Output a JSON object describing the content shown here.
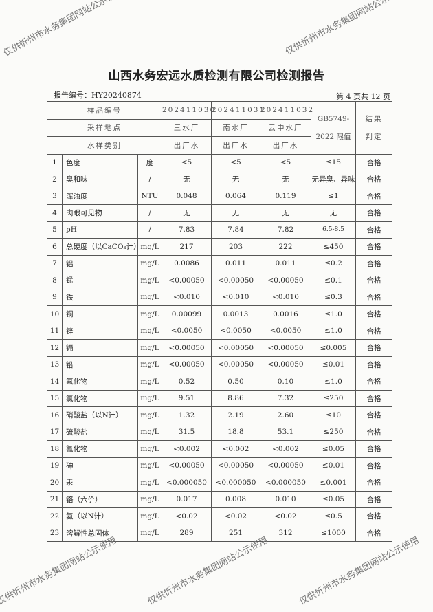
{
  "title": "山西水务宏远水质检测有限公司检测报告",
  "report_number": "报告编号：HY20240874",
  "page_info": "第 4 页共 12 页",
  "watermark": "仅供忻州市水务集团网站公示使用",
  "header": {
    "sample_id_label": "样品编号",
    "location_label": "采样地点",
    "type_label": "水样类别",
    "standard_line1": "GB5749-",
    "standard_line2": "2022 限值",
    "result_line1": "结果",
    "result_line2": "判定",
    "samples": [
      {
        "id": "202411030",
        "location": "三水厂",
        "type": "出厂水"
      },
      {
        "id": "202411031",
        "location": "南水厂",
        "type": "出厂水"
      },
      {
        "id": "202411032",
        "location": "云中水厂",
        "type": "出厂水"
      }
    ]
  },
  "rows": [
    {
      "no": "1",
      "name": "色度",
      "unit": "度",
      "v": [
        "<5",
        "<5",
        "<5"
      ],
      "limit": "≤15",
      "result": "合格"
    },
    {
      "no": "2",
      "name": "臭和味",
      "unit": "/",
      "v": [
        "无",
        "无",
        "无"
      ],
      "limit": "无异臭、异味",
      "result": "合格"
    },
    {
      "no": "3",
      "name": "浑浊度",
      "unit": "NTU",
      "v": [
        "0.048",
        "0.064",
        "0.119"
      ],
      "limit": "≤1",
      "result": "合格"
    },
    {
      "no": "4",
      "name": "肉眼可见物",
      "unit": "/",
      "v": [
        "无",
        "无",
        "无"
      ],
      "limit": "无",
      "result": "合格"
    },
    {
      "no": "5",
      "name": "pH",
      "unit": "/",
      "v": [
        "7.83",
        "7.84",
        "7.82"
      ],
      "limit": "6.5-8.5",
      "result": "合格"
    },
    {
      "no": "6",
      "name": "总硬度（以CaCO₃计）",
      "unit": "mg/L",
      "v": [
        "217",
        "203",
        "222"
      ],
      "limit": "≤450",
      "result": "合格"
    },
    {
      "no": "7",
      "name": "铝",
      "unit": "mg/L",
      "v": [
        "0.0086",
        "0.011",
        "0.011"
      ],
      "limit": "≤0.2",
      "result": "合格"
    },
    {
      "no": "8",
      "name": "锰",
      "unit": "mg/L",
      "v": [
        "<0.00050",
        "<0.00050",
        "<0.00050"
      ],
      "limit": "≤0.1",
      "result": "合格"
    },
    {
      "no": "9",
      "name": "铁",
      "unit": "mg/L",
      "v": [
        "<0.010",
        "<0.010",
        "<0.010"
      ],
      "limit": "≤0.3",
      "result": "合格"
    },
    {
      "no": "10",
      "name": "铜",
      "unit": "mg/L",
      "v": [
        "0.00099",
        "0.0013",
        "0.0016"
      ],
      "limit": "≤1.0",
      "result": "合格"
    },
    {
      "no": "11",
      "name": "锌",
      "unit": "mg/L",
      "v": [
        "<0.0050",
        "<0.0050",
        "<0.0050"
      ],
      "limit": "≤1.0",
      "result": "合格"
    },
    {
      "no": "12",
      "name": "镉",
      "unit": "mg/L",
      "v": [
        "<0.00050",
        "<0.00050",
        "<0.00050"
      ],
      "limit": "≤0.005",
      "result": "合格"
    },
    {
      "no": "13",
      "name": "铅",
      "unit": "mg/L",
      "v": [
        "<0.00050",
        "<0.00050",
        "<0.00050"
      ],
      "limit": "≤0.01",
      "result": "合格"
    },
    {
      "no": "14",
      "name": "氟化物",
      "unit": "mg/L",
      "v": [
        "0.52",
        "0.50",
        "0.10"
      ],
      "limit": "≤1.0",
      "result": "合格"
    },
    {
      "no": "15",
      "name": "氯化物",
      "unit": "mg/L",
      "v": [
        "9.51",
        "8.86",
        "7.32"
      ],
      "limit": "≤250",
      "result": "合格"
    },
    {
      "no": "16",
      "name": "硝酸盐（以N计）",
      "unit": "mg/L",
      "v": [
        "1.32",
        "2.19",
        "2.60"
      ],
      "limit": "≤10",
      "result": "合格"
    },
    {
      "no": "17",
      "name": "硫酸盐",
      "unit": "mg/L",
      "v": [
        "31.5",
        "18.8",
        "53.1"
      ],
      "limit": "≤250",
      "result": "合格"
    },
    {
      "no": "18",
      "name": "氰化物",
      "unit": "mg/L",
      "v": [
        "<0.002",
        "<0.002",
        "<0.002"
      ],
      "limit": "≤0.05",
      "result": "合格"
    },
    {
      "no": "19",
      "name": "砷",
      "unit": "mg/L",
      "v": [
        "<0.00050",
        "<0.00050",
        "<0.00050"
      ],
      "limit": "≤0.01",
      "result": "合格"
    },
    {
      "no": "20",
      "name": "汞",
      "unit": "mg/L",
      "v": [
        "<0.000050",
        "<0.000050",
        "<0.000050"
      ],
      "limit": "≤0.001",
      "result": "合格"
    },
    {
      "no": "21",
      "name": "铬（六价）",
      "unit": "mg/L",
      "v": [
        "0.017",
        "0.008",
        "0.010"
      ],
      "limit": "≤0.05",
      "result": "合格"
    },
    {
      "no": "22",
      "name": "氨（以N计）",
      "unit": "mg/L",
      "v": [
        "<0.02",
        "<0.02",
        "<0.02"
      ],
      "limit": "≤0.5",
      "result": "合格"
    },
    {
      "no": "23",
      "name": "溶解性总固体",
      "unit": "mg/L",
      "v": [
        "289",
        "251",
        "312"
      ],
      "limit": "≤1000",
      "result": "合格"
    }
  ]
}
